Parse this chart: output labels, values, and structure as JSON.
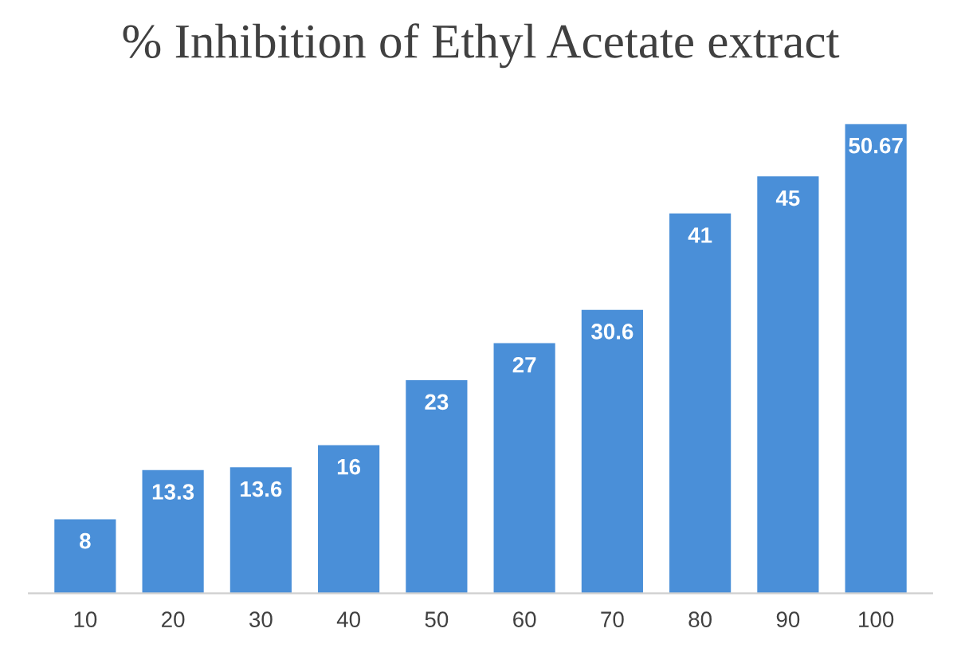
{
  "chart_data": {
    "type": "bar",
    "title": "% Inhibition of Ethyl Acetate extract",
    "categories": [
      "10",
      "20",
      "30",
      "40",
      "50",
      "60",
      "70",
      "80",
      "90",
      "100"
    ],
    "values": [
      8,
      13.3,
      13.6,
      16,
      23,
      27,
      30.6,
      41,
      45,
      50.67
    ],
    "color": "#4a8fd8",
    "data_labels": true
  }
}
